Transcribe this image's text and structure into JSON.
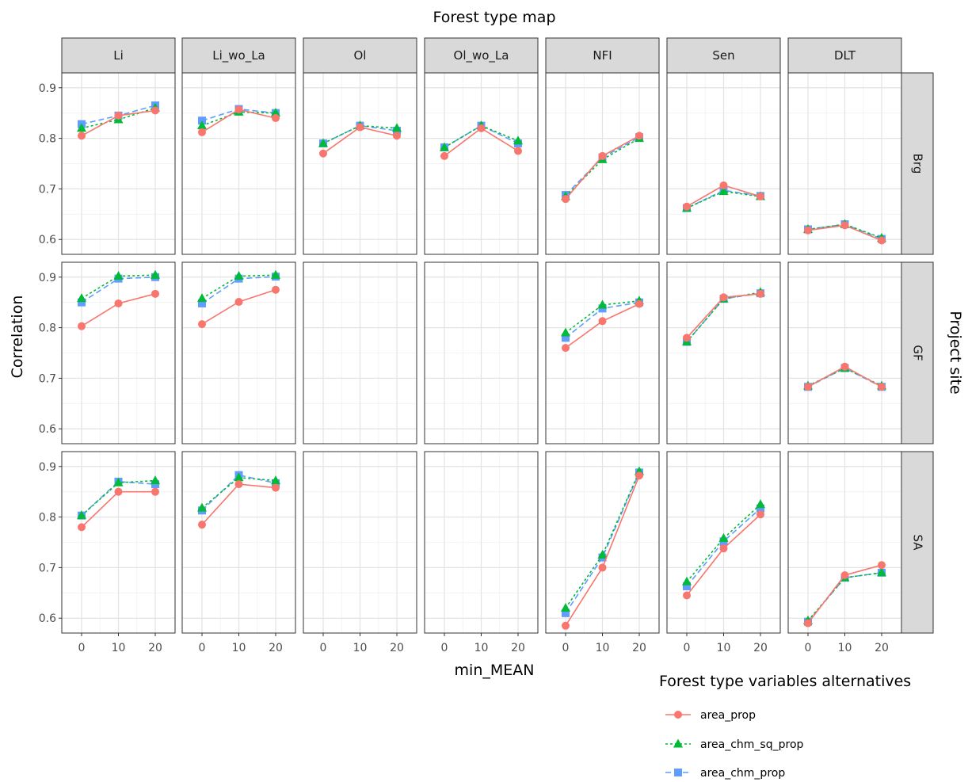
{
  "chart_data": {
    "type": "line",
    "title": "Forest type map",
    "xlabel": "min_MEAN",
    "ylabel": "Correlation",
    "right_label": "Project site",
    "x": [
      0,
      10,
      20
    ],
    "x_ticks": [
      "0",
      "10",
      "20"
    ],
    "ylim": [
      0.58,
      0.92
    ],
    "y_ticks": [
      0.6,
      0.7,
      0.8,
      0.9
    ],
    "y_tick_labels": [
      "0.6",
      "0.7",
      "0.8",
      "0.9"
    ],
    "columns": [
      "Li",
      "Li_wo_La",
      "Ol",
      "Ol_wo_La",
      "NFI",
      "Sen",
      "DLT"
    ],
    "rows": [
      "Brg",
      "GF",
      "SA"
    ],
    "grid": true,
    "legend_position": "bottom-right",
    "legend": {
      "title": "Forest type variables alternatives",
      "entries": [
        "area_prop",
        "area_chm_sq_prop",
        "area_chm_prop"
      ]
    },
    "series_styles": [
      {
        "name": "area_prop",
        "color": "#F8766D",
        "marker": "circle",
        "dash": "solid"
      },
      {
        "name": "area_chm_sq_prop",
        "color": "#00BA38",
        "marker": "triangle",
        "dash": "dotted"
      },
      {
        "name": "area_chm_prop",
        "color": "#619CFF",
        "marker": "square",
        "dash": "dashed"
      }
    ],
    "panels": {
      "Brg": {
        "Li": [
          [
            0.805,
            0.845,
            0.855
          ],
          [
            0.82,
            0.837,
            0.86
          ],
          [
            0.828,
            0.845,
            0.865
          ]
        ],
        "Li_wo_La": [
          [
            0.812,
            0.857,
            0.84
          ],
          [
            0.825,
            0.852,
            0.85
          ],
          [
            0.835,
            0.858,
            0.85
          ]
        ],
        "Ol": [
          [
            0.77,
            0.822,
            0.805
          ],
          [
            0.79,
            0.825,
            0.82
          ],
          [
            0.79,
            0.825,
            0.815
          ]
        ],
        "Ol_wo_La": [
          [
            0.765,
            0.82,
            0.775
          ],
          [
            0.782,
            0.825,
            0.795
          ],
          [
            0.782,
            0.825,
            0.79
          ]
        ],
        "NFI": [
          [
            0.68,
            0.765,
            0.805
          ],
          [
            0.685,
            0.758,
            0.8
          ],
          [
            0.688,
            0.762,
            0.802
          ]
        ],
        "Sen": [
          [
            0.665,
            0.707,
            0.685
          ],
          [
            0.662,
            0.695,
            0.685
          ],
          [
            0.662,
            0.697,
            0.686
          ]
        ],
        "DLT": [
          [
            0.618,
            0.628,
            0.598
          ],
          [
            0.62,
            0.63,
            0.603
          ],
          [
            0.62,
            0.63,
            0.601
          ]
        ]
      },
      "GF": {
        "Li": [
          [
            0.803,
            0.848,
            0.867
          ],
          [
            0.858,
            0.902,
            0.904
          ],
          [
            0.85,
            0.897,
            0.9
          ]
        ],
        "Li_wo_La": [
          [
            0.807,
            0.851,
            0.875
          ],
          [
            0.858,
            0.902,
            0.904
          ],
          [
            0.848,
            0.897,
            0.901
          ]
        ],
        "Ol": null,
        "Ol_wo_La": null,
        "NFI": [
          [
            0.76,
            0.813,
            0.847
          ],
          [
            0.79,
            0.845,
            0.853
          ],
          [
            0.78,
            0.838,
            0.85
          ]
        ],
        "Sen": [
          [
            0.78,
            0.86,
            0.867
          ],
          [
            0.772,
            0.857,
            0.87
          ],
          [
            0.772,
            0.857,
            0.868
          ]
        ],
        "DLT": [
          [
            0.683,
            0.723,
            0.683
          ],
          [
            0.685,
            0.72,
            0.685
          ],
          [
            0.683,
            0.72,
            0.683
          ]
        ]
      },
      "SA": {
        "Li": [
          [
            0.78,
            0.85,
            0.85
          ],
          [
            0.803,
            0.868,
            0.872
          ],
          [
            0.803,
            0.87,
            0.865
          ]
        ],
        "Li_wo_La": [
          [
            0.785,
            0.865,
            0.858
          ],
          [
            0.818,
            0.878,
            0.872
          ],
          [
            0.813,
            0.883,
            0.867
          ]
        ],
        "Ol": null,
        "Ol_wo_La": null,
        "NFI": [
          [
            0.585,
            0.7,
            0.882
          ],
          [
            0.62,
            0.725,
            0.89
          ],
          [
            0.61,
            0.72,
            0.888
          ]
        ],
        "Sen": [
          [
            0.645,
            0.738,
            0.805
          ],
          [
            0.672,
            0.758,
            0.825
          ],
          [
            0.663,
            0.752,
            0.817
          ]
        ],
        "DLT": [
          [
            0.59,
            0.685,
            0.705
          ],
          [
            0.595,
            0.68,
            0.69
          ],
          [
            0.593,
            0.68,
            0.69
          ]
        ]
      }
    }
  }
}
